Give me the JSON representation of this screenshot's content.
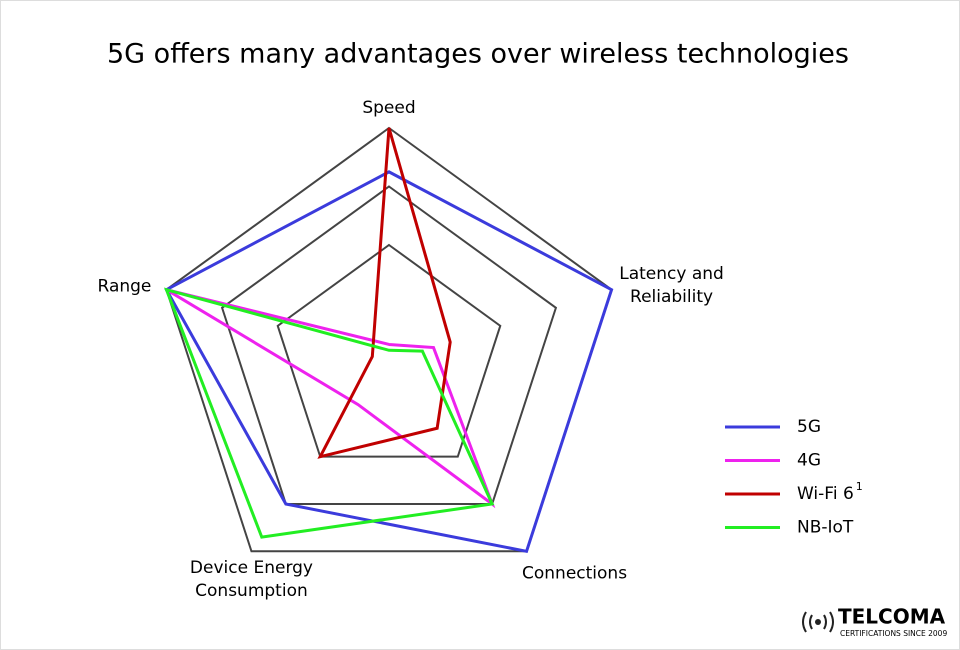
{
  "chart_data": {
    "type": "radar",
    "title": "5G offers many advantages over wireless technologies",
    "categories": [
      [
        "Speed"
      ],
      [
        "Latency and",
        "Reliability"
      ],
      [
        "Connections"
      ],
      [
        "Device Energy",
        "Consumption"
      ],
      [
        "Range"
      ]
    ],
    "rlim": [
      0,
      4
    ],
    "rings": [
      2,
      3,
      4
    ],
    "ring_color": "#444444",
    "series": [
      {
        "name": "5G",
        "color": "#3b3bdc",
        "values": [
          3.25,
          4,
          4,
          3,
          4
        ]
      },
      {
        "name": "4G",
        "color": "#ee22ee",
        "values": [
          0.3,
          0.8,
          3,
          0.9,
          4
        ]
      },
      {
        "name": "Wi-Fi 6",
        "note": "1",
        "color": "#c00000",
        "values": [
          4,
          1.1,
          1.4,
          2,
          0.3
        ]
      },
      {
        "name": "NB-IoT",
        "color": "#22ee22",
        "values": [
          0.2,
          0.6,
          3,
          3.7,
          4
        ]
      }
    ],
    "legend": "right"
  },
  "logo": {
    "name": "TELCOMA",
    "tagline": "CERTIFICATIONS SINCE 2009"
  }
}
